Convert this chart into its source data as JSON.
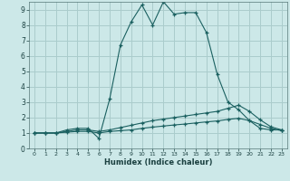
{
  "xlabel": "Humidex (Indice chaleur)",
  "bg_color": "#cce8e8",
  "grid_color": "#aacccc",
  "line_color": "#1a6060",
  "xlim": [
    -0.5,
    23.5
  ],
  "ylim": [
    0,
    9.5
  ],
  "xticks": [
    0,
    1,
    2,
    3,
    4,
    5,
    6,
    7,
    8,
    9,
    10,
    11,
    12,
    13,
    14,
    15,
    16,
    17,
    18,
    19,
    20,
    21,
    22,
    23
  ],
  "yticks": [
    0,
    1,
    2,
    3,
    4,
    5,
    6,
    7,
    8,
    9
  ],
  "series1_x": [
    0,
    1,
    2,
    3,
    4,
    5,
    6,
    7,
    8,
    9,
    10,
    11,
    12,
    13,
    14,
    15,
    16,
    17,
    18,
    19,
    20,
    21,
    22,
    23
  ],
  "series1_y": [
    1.0,
    1.0,
    1.0,
    1.2,
    1.3,
    1.3,
    0.65,
    3.2,
    6.7,
    8.2,
    9.3,
    8.0,
    9.5,
    8.7,
    8.8,
    8.8,
    7.5,
    4.8,
    3.0,
    2.5,
    1.8,
    1.3,
    1.2,
    1.2
  ],
  "series2_x": [
    0,
    1,
    2,
    3,
    4,
    5,
    6,
    7,
    8,
    9,
    10,
    11,
    12,
    13,
    14,
    15,
    16,
    17,
    18,
    19,
    20,
    21,
    22,
    23
  ],
  "series2_y": [
    1.0,
    1.0,
    1.0,
    1.1,
    1.2,
    1.2,
    1.1,
    1.2,
    1.35,
    1.5,
    1.65,
    1.8,
    1.9,
    2.0,
    2.1,
    2.2,
    2.3,
    2.4,
    2.6,
    2.8,
    2.4,
    1.85,
    1.4,
    1.2
  ],
  "series3_x": [
    0,
    1,
    2,
    3,
    4,
    5,
    6,
    7,
    8,
    9,
    10,
    11,
    12,
    13,
    14,
    15,
    16,
    17,
    18,
    19,
    20,
    21,
    22,
    23
  ],
  "series3_y": [
    1.0,
    1.0,
    1.0,
    1.05,
    1.1,
    1.1,
    1.0,
    1.1,
    1.15,
    1.2,
    1.3,
    1.38,
    1.45,
    1.52,
    1.58,
    1.65,
    1.72,
    1.78,
    1.88,
    1.95,
    1.8,
    1.55,
    1.3,
    1.15
  ]
}
